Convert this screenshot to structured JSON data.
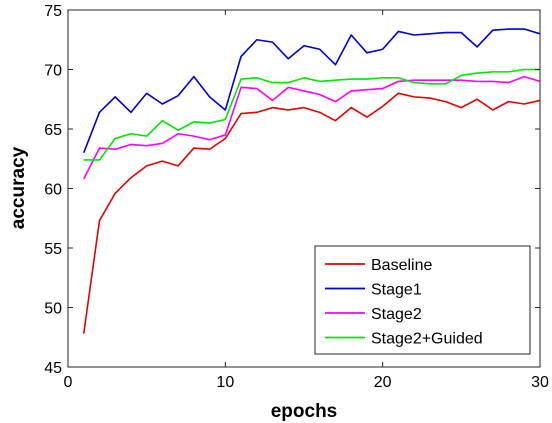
{
  "chart_data": {
    "type": "line",
    "xlabel": "epochs",
    "ylabel": "accuracy",
    "xlim": [
      0,
      30
    ],
    "ylim": [
      45,
      75
    ],
    "xticks": [
      0,
      10,
      20,
      30
    ],
    "yticks": [
      45,
      50,
      55,
      60,
      65,
      70,
      75
    ],
    "grid": false,
    "legend_position": "bottom-right",
    "x": [
      1,
      2,
      3,
      4,
      5,
      6,
      7,
      8,
      9,
      10,
      11,
      12,
      13,
      14,
      15,
      16,
      17,
      18,
      19,
      20,
      21,
      22,
      23,
      24,
      25,
      26,
      27,
      28,
      29,
      30
    ],
    "series": [
      {
        "name": "Baseline",
        "color": "#e60000",
        "values": [
          47.8,
          57.3,
          59.6,
          60.9,
          61.9,
          62.3,
          61.9,
          63.4,
          63.3,
          64.2,
          66.3,
          66.4,
          66.8,
          66.6,
          66.8,
          66.4,
          65.7,
          66.8,
          66.0,
          66.9,
          68.0,
          67.7,
          67.6,
          67.3,
          66.8,
          67.5,
          66.6,
          67.3,
          67.1,
          67.4
        ]
      },
      {
        "name": "Stage1",
        "color": "#0000d9",
        "values": [
          63.0,
          66.4,
          67.7,
          66.4,
          68.0,
          67.1,
          67.8,
          69.4,
          67.7,
          66.6,
          71.1,
          72.5,
          72.3,
          70.9,
          72.0,
          71.7,
          70.4,
          72.9,
          71.4,
          71.7,
          73.2,
          72.9,
          73.0,
          73.1,
          73.1,
          71.9,
          73.3,
          73.4,
          73.4,
          73.0
        ]
      },
      {
        "name": "Stage2",
        "color": "#ff00ff",
        "values": [
          60.8,
          63.4,
          63.3,
          63.7,
          63.6,
          63.8,
          64.6,
          64.4,
          64.1,
          64.5,
          68.5,
          68.4,
          67.4,
          68.5,
          68.2,
          67.9,
          67.3,
          68.2,
          68.3,
          68.4,
          69.0,
          69.1,
          69.1,
          69.1,
          69.1,
          69.0,
          69.0,
          68.9,
          69.4,
          69.0
        ]
      },
      {
        "name": "Stage2+Guided",
        "color": "#00e600",
        "values": [
          62.4,
          62.4,
          64.2,
          64.6,
          64.4,
          65.7,
          64.9,
          65.6,
          65.5,
          65.8,
          69.2,
          69.3,
          68.9,
          68.9,
          69.3,
          69.0,
          69.1,
          69.2,
          69.2,
          69.3,
          69.3,
          68.9,
          68.8,
          68.8,
          69.5,
          69.7,
          69.8,
          69.8,
          70.0,
          70.0
        ]
      }
    ]
  }
}
